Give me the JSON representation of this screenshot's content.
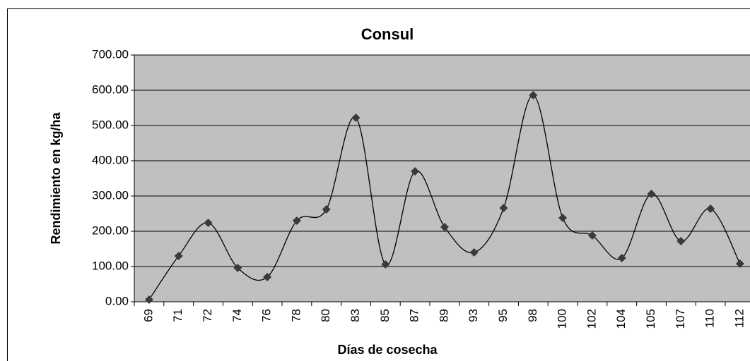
{
  "chart_data": {
    "type": "line",
    "title": "Consul",
    "x_label": "Días de cosecha",
    "y_label": "Rendimiento en kg/ha",
    "categories": [
      "69",
      "71",
      "72",
      "74",
      "76",
      "78",
      "80",
      "83",
      "85",
      "87",
      "89",
      "93",
      "95",
      "98",
      "100",
      "102",
      "104",
      "105",
      "107",
      "110",
      "112"
    ],
    "values": [
      6,
      130,
      224,
      96,
      70,
      230,
      262,
      522,
      106,
      370,
      212,
      140,
      266,
      586,
      238,
      188,
      124,
      306,
      172,
      264,
      108
    ],
    "color": "#000000",
    "marker_color": "#3a3a3a",
    "smooth": true,
    "grid": true,
    "plot_background": "#c0c0c0",
    "ylim": [
      0,
      700
    ],
    "yticks": [
      {
        "value": 0,
        "label": "0.00"
      },
      {
        "value": 100,
        "label": "100.00"
      },
      {
        "value": 200,
        "label": "200.00"
      },
      {
        "value": 300,
        "label": "300.00"
      },
      {
        "value": 400,
        "label": "400.00"
      },
      {
        "value": 500,
        "label": "500.00"
      },
      {
        "value": 600,
        "label": "600.00"
      },
      {
        "value": 700,
        "label": "700.00"
      }
    ]
  }
}
